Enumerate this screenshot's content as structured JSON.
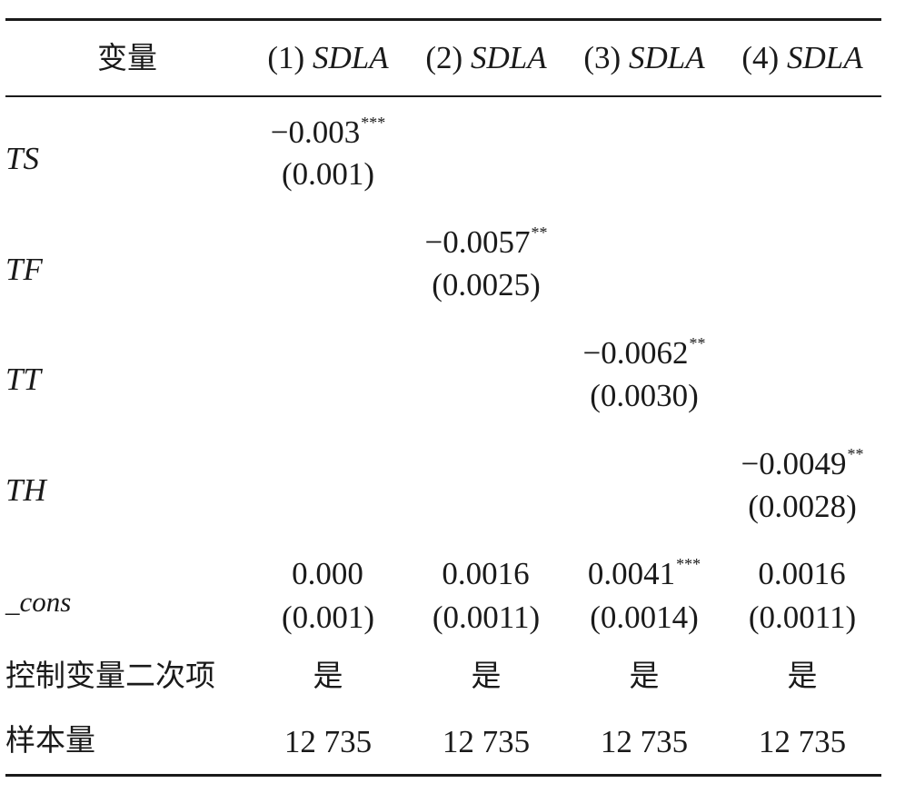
{
  "header": {
    "var": "变量",
    "cols": [
      {
        "num": "(1)",
        "dep": "SDLA"
      },
      {
        "num": "(2)",
        "dep": "SDLA"
      },
      {
        "num": "(3)",
        "dep": "SDLA"
      },
      {
        "num": "(4)",
        "dep": "SDLA"
      }
    ]
  },
  "rows": {
    "ts": {
      "label": "TS",
      "coef": "−0.003",
      "stars": "***",
      "se": "(0.001)"
    },
    "tf": {
      "label": "TF",
      "coef": "−0.0057",
      "stars": "**",
      "se": "(0.0025)"
    },
    "tt": {
      "label": "TT",
      "coef": "−0.0062",
      "stars": "**",
      "se": "(0.0030)"
    },
    "th": {
      "label": "TH",
      "coef": "−0.0049",
      "stars": "**",
      "se": "(0.0028)"
    },
    "cons": {
      "label": "_cons",
      "cells": [
        {
          "coef": "0.000",
          "stars": "",
          "se": "(0.001)"
        },
        {
          "coef": "0.0016",
          "stars": "",
          "se": "(0.0011)"
        },
        {
          "coef": "0.0041",
          "stars": "***",
          "se": "(0.0014)"
        },
        {
          "coef": "0.0016",
          "stars": "",
          "se": "(0.0011)"
        }
      ]
    },
    "controls": {
      "label": "控制变量二次项",
      "values": [
        "是",
        "是",
        "是",
        "是"
      ]
    },
    "n": {
      "label": "样本量",
      "values": [
        "12 735",
        "12 735",
        "12 735",
        "12 735"
      ]
    }
  }
}
